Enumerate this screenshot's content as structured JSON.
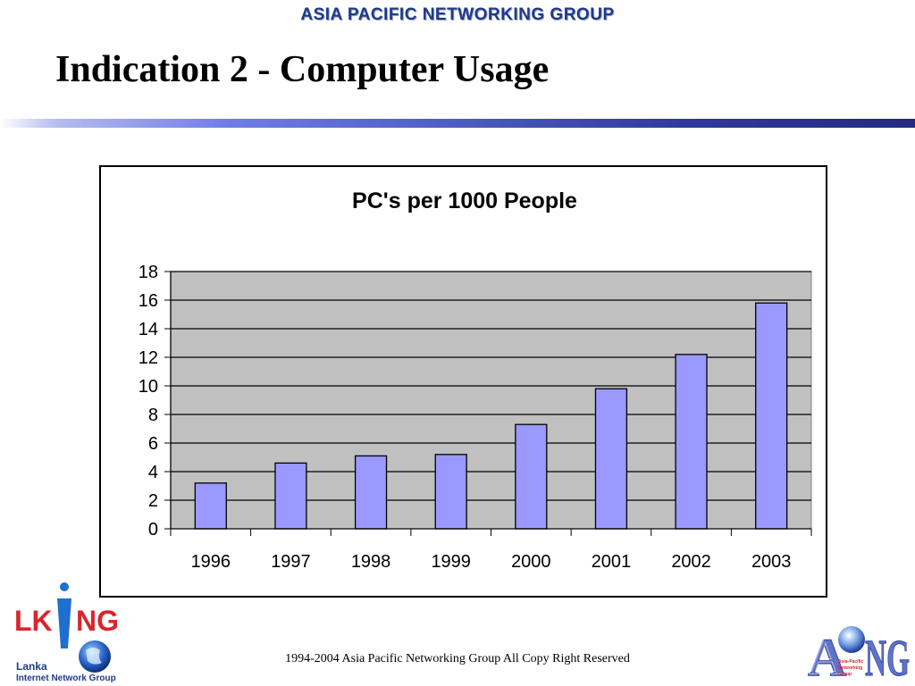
{
  "header": {
    "banner": "ASIA PACIFIC NETWORKING GROUP",
    "title": "Indication 2 - Computer Usage"
  },
  "footer": {
    "copyright": "1994-2004 Asia Pacific Networking Group All Copy Right Reserved"
  },
  "logos": {
    "left": {
      "main": "LK",
      "letter_i": "i",
      "end": "NG",
      "line1": "Lanka",
      "line2": "Internet Network Group"
    },
    "right": {
      "main_a": "A",
      "main_ng": "NG",
      "sub1": "Asia-Pacific",
      "sub2": "Networking",
      "sub3": "Group"
    }
  },
  "colors": {
    "bar": "#9999ff",
    "plot_bg": "#c0c0c0",
    "accent_blue": "#1f3a8a",
    "logo_red": "#d8262d"
  },
  "chart_data": {
    "type": "bar",
    "title": "PC's per 1000 People",
    "xlabel": "",
    "ylabel": "",
    "categories": [
      "1996",
      "1997",
      "1998",
      "1999",
      "2000",
      "2001",
      "2002",
      "2003"
    ],
    "values": [
      3.2,
      4.6,
      5.1,
      5.2,
      7.3,
      9.8,
      12.2,
      15.8
    ],
    "ylim": [
      0,
      18
    ],
    "yticks": [
      0,
      2,
      4,
      6,
      8,
      10,
      12,
      14,
      16,
      18
    ],
    "grid": true,
    "legend": "none"
  }
}
